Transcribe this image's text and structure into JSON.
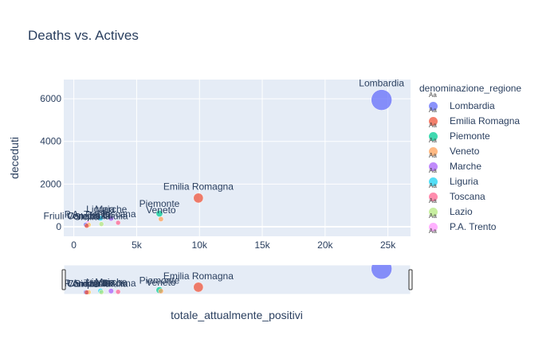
{
  "chart_data": {
    "type": "scatter",
    "title": "Deaths vs. Actives",
    "xlabel": "totale_attualmente_positivi",
    "ylabel": "deceduti",
    "xlim": [
      -800,
      26800
    ],
    "ylim": [
      -450,
      6900
    ],
    "x_ticks": [
      {
        "v": 0,
        "label": "0"
      },
      {
        "v": 5000,
        "label": "5k"
      },
      {
        "v": 10000,
        "label": "10k"
      },
      {
        "v": 15000,
        "label": "15k"
      },
      {
        "v": 20000,
        "label": "20k"
      },
      {
        "v": 25000,
        "label": "25k"
      }
    ],
    "y_ticks": [
      {
        "v": 0,
        "label": "0"
      },
      {
        "v": 2000,
        "label": "2000"
      },
      {
        "v": 4000,
        "label": "4000"
      },
      {
        "v": 6000,
        "label": "6000"
      }
    ],
    "grid": true,
    "legend_title": "denominazione_regione",
    "legend_position": "right",
    "legend_marker_text": "Aa",
    "rangeslider": true,
    "series": [
      {
        "name": "Lombardia",
        "color": "#636efa",
        "x": 24494,
        "y": 5944
      },
      {
        "name": "Emilia Romagna",
        "color": "#ef553b",
        "x": 9914,
        "y": 1344
      },
      {
        "name": "Piemonte",
        "color": "#00cc96",
        "x": 6813,
        "y": 616
      },
      {
        "name": "Veneto",
        "color": "#ffa15a",
        "x": 6935,
        "y": 356
      },
      {
        "name": "Marche",
        "color": "#ab63fa",
        "x": 2963,
        "y": 388
      },
      {
        "name": "Liguria",
        "color": "#19d3f3",
        "x": 2130,
        "y": 397
      },
      {
        "name": "Toscana",
        "color": "#ff6692",
        "x": 3524,
        "y": 186
      },
      {
        "name": "Lazio",
        "color": "#b6e880",
        "x": 2194,
        "y": 125
      },
      {
        "name": "P.A. Trento",
        "color": "#ff97ff",
        "x": 1100,
        "y": 160
      },
      {
        "name": "Campania",
        "color": "#fecb52",
        "x": 1180,
        "y": 90
      },
      {
        "name": "Friuli Venezia Giulia",
        "color": "#636efa",
        "x": 950,
        "y": 90
      },
      {
        "name": "Sicilia",
        "color": "#ef553b",
        "x": 1030,
        "y": 45
      }
    ]
  }
}
